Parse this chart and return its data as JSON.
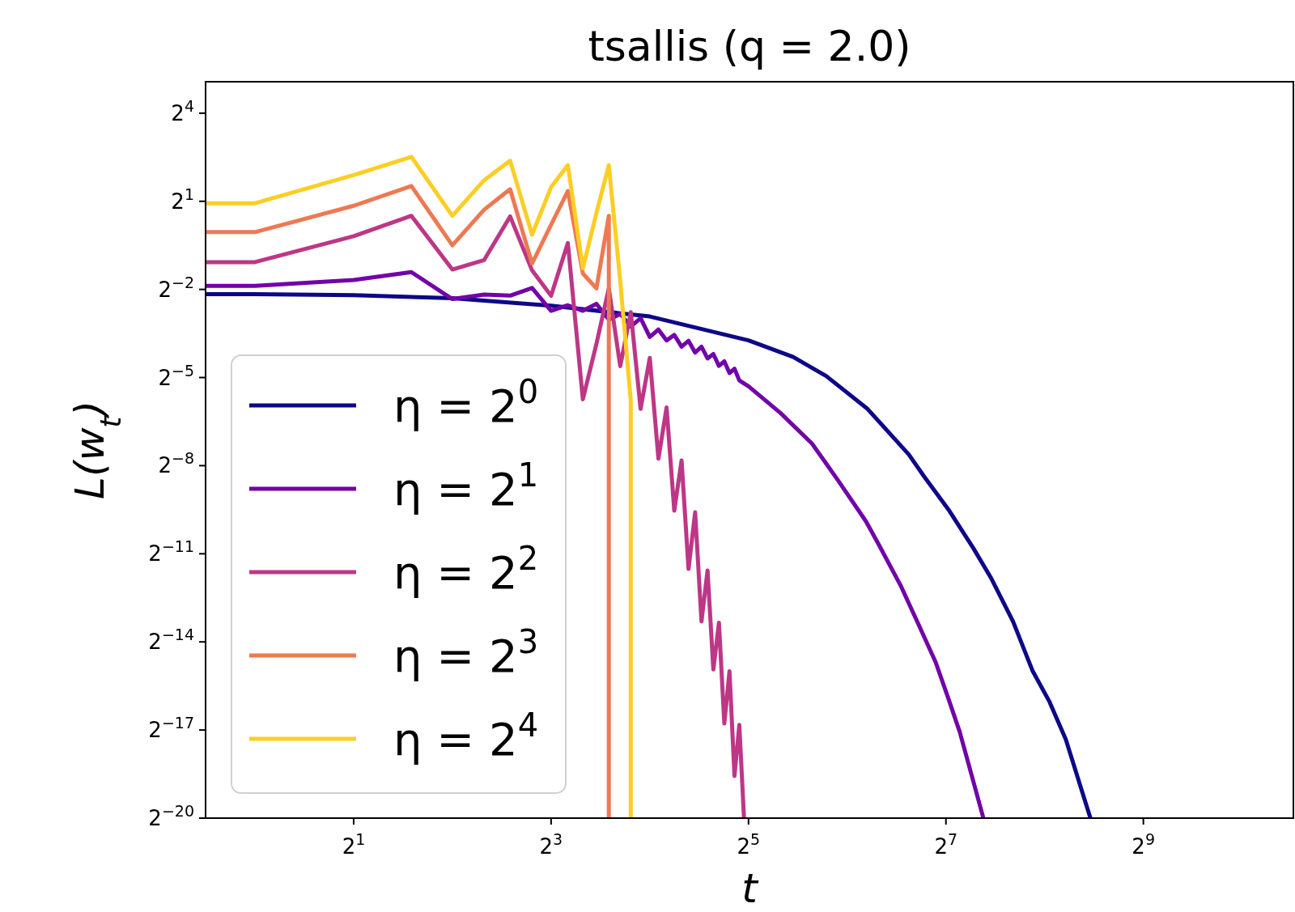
{
  "chart_data": {
    "type": "line",
    "title": "tsallis (q = 2.0)",
    "xlabel": "t",
    "ylabel": "L(w$_{t}$)",
    "log": "xy",
    "grid": false,
    "legend": "left",
    "line_style": "solid",
    "marker": "none",
    "xlim": [
      0.7071,
      1468
    ],
    "ylim": [
      9.5367e-07,
      33.6
    ],
    "xticks": [
      {
        "value": 2,
        "label": "2$^{1}$"
      },
      {
        "value": 8,
        "label": "2$^{3}$"
      },
      {
        "value": 32,
        "label": "2$^{5}$"
      },
      {
        "value": 128,
        "label": "2$^{7}$"
      },
      {
        "value": 512,
        "label": "2$^{9}$"
      }
    ],
    "yticks": [
      {
        "value": 9.5367431640625e-07,
        "label": "2$^{−20}$"
      },
      {
        "value": 7.62939453125e-06,
        "label": "2$^{−17}$"
      },
      {
        "value": 6.103515625e-05,
        "label": "2$^{−14}$"
      },
      {
        "value": 0.00048828125,
        "label": "2$^{−11}$"
      },
      {
        "value": 0.00390625,
        "label": "2$^{−8}$"
      },
      {
        "value": 0.03125,
        "label": "2$^{−5}$"
      },
      {
        "value": 0.25,
        "label": "2$^{−2}$"
      },
      {
        "value": 2,
        "label": "2$^{1}$"
      },
      {
        "value": 16,
        "label": "2$^{4}$"
      }
    ],
    "series": [
      {
        "name": "η = 2$^{0}$",
        "color": "#0d0887",
        "x": [
          0.7071,
          1,
          2,
          4,
          8,
          16,
          32,
          43.8,
          55.2,
          73.8,
          98.6,
          110,
          131,
          155,
          176,
          205,
          235,
          265,
          297,
          353
        ],
        "values": [
          0.224,
          0.224,
          0.218,
          0.203,
          0.17,
          0.132,
          0.075,
          0.0508,
          0.0324,
          0.0149,
          0.00508,
          0.003,
          0.00135,
          0.00056,
          0.000273,
          9.9e-05,
          3.1e-05,
          1.48e-05,
          6.1e-06,
          9.54e-07
        ]
      },
      {
        "name": "η = 2$^{1}$",
        "color": "#7201a8",
        "x": [
          0.7071,
          1,
          2,
          3,
          4,
          5,
          6,
          7,
          8,
          9,
          10,
          11,
          12,
          13,
          14,
          15,
          16,
          17,
          18,
          19,
          20,
          21,
          22,
          23,
          24,
          25,
          26,
          27,
          28,
          29,
          30,
          32,
          40,
          50,
          60,
          73,
          80,
          93,
          105,
          119,
          130,
          141,
          153,
          166
        ],
        "values": [
          0.272,
          0.272,
          0.312,
          0.376,
          0.199,
          0.221,
          0.216,
          0.259,
          0.151,
          0.172,
          0.151,
          0.178,
          0.1225,
          0.14,
          0.104,
          0.127,
          0.0815,
          0.0969,
          0.075,
          0.0854,
          0.0647,
          0.0743,
          0.0563,
          0.0647,
          0.049,
          0.0544,
          0.0412,
          0.0458,
          0.0347,
          0.0385,
          0.0292,
          0.0254,
          0.0136,
          0.00657,
          0.00276,
          0.00105,
          0.0006,
          0.000233,
          9.6e-05,
          3.8e-05,
          1.63e-05,
          7.3e-06,
          2.69e-06,
          9.9e-07
        ]
      },
      {
        "name": "η = 2$^{2}$",
        "color": "#bd3786",
        "x": [
          0.7071,
          1,
          2,
          3,
          4,
          5,
          6,
          7,
          8,
          9,
          10,
          11,
          12,
          13,
          14,
          15,
          16,
          17,
          18,
          19,
          20,
          21,
          22,
          23,
          24,
          25,
          26,
          27,
          28,
          29,
          30,
          31
        ],
        "values": [
          0.476,
          0.476,
          0.877,
          1.42,
          0.4,
          0.5,
          1.4,
          0.392,
          0.215,
          0.747,
          0.0187,
          0.0693,
          0.256,
          0.0409,
          0.146,
          0.0149,
          0.0497,
          0.00461,
          0.0154,
          0.00135,
          0.00442,
          0.000341,
          0.0013,
          9.9e-05,
          0.000329,
          3.18e-05,
          9.6e-05,
          8.9e-06,
          3.05e-05,
          2.58e-06,
          8.6e-06,
          9.6e-07
        ]
      },
      {
        "name": "η = 2$^{3}$",
        "color": "#ed7953",
        "x": [
          0.7071,
          1,
          2,
          3,
          4,
          5,
          6,
          7,
          8,
          9,
          10,
          11,
          12,
          12
        ],
        "values": [
          0.966,
          0.966,
          1.8,
          2.87,
          0.707,
          1.64,
          2.66,
          0.46,
          1.15,
          2.55,
          0.364,
          0.256,
          1.42,
          9.6e-07
        ]
      },
      {
        "name": "η = 2$^{4}$",
        "color": "#fcce25",
        "x": [
          0.7071,
          1,
          2,
          3,
          4,
          5,
          6,
          7,
          8,
          9,
          10,
          11,
          12,
          13,
          14,
          14
        ],
        "values": [
          1.91,
          1.91,
          3.71,
          5.7,
          1.42,
          3.29,
          5.21,
          0.91,
          2.79,
          4.69,
          0.41,
          1.52,
          4.69,
          0.305,
          0.0181,
          9.6e-07
        ]
      }
    ]
  }
}
